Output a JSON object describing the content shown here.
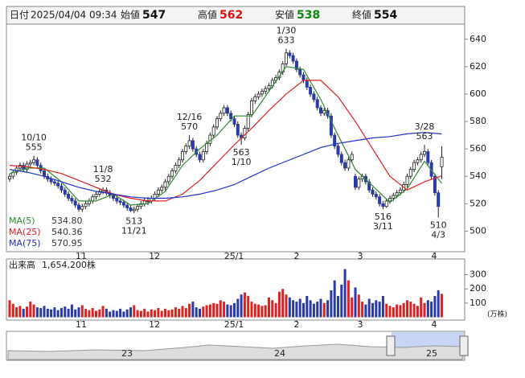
{
  "chart_data": {
    "type": "candlestick",
    "header": {
      "date_label": "日付",
      "datetime": "2025/04/04 09:34",
      "fields": [
        {
          "label": "始値",
          "value": 547,
          "color": "#111111"
        },
        {
          "label": "高値",
          "value": 562,
          "color": "#dd1111"
        },
        {
          "label": "安値",
          "value": 538,
          "color": "#118811"
        },
        {
          "label": "終値",
          "value": 554,
          "color": "#111111"
        }
      ]
    },
    "candles": [
      [
        538,
        542,
        536,
        540
      ],
      [
        540,
        545,
        538,
        543
      ],
      [
        543,
        548,
        541,
        546
      ],
      [
        546,
        550,
        544,
        548
      ],
      [
        548,
        550,
        543,
        545
      ],
      [
        545,
        551,
        543,
        549
      ],
      [
        549,
        552,
        547,
        550
      ],
      [
        550,
        555,
        548,
        552
      ],
      [
        552,
        554,
        546,
        548
      ],
      [
        548,
        550,
        542,
        544
      ],
      [
        544,
        546,
        538,
        540
      ],
      [
        540,
        542,
        536,
        538
      ],
      [
        538,
        540,
        534,
        536
      ],
      [
        536,
        538,
        533,
        535
      ],
      [
        535,
        537,
        531,
        533
      ],
      [
        533,
        535,
        528,
        530
      ],
      [
        530,
        532,
        525,
        527
      ],
      [
        527,
        529,
        522,
        524
      ],
      [
        524,
        526,
        520,
        522
      ],
      [
        522,
        524,
        517,
        519
      ],
      [
        519,
        521,
        514,
        516
      ],
      [
        516,
        520,
        514,
        518
      ],
      [
        518,
        522,
        516,
        520
      ],
      [
        520,
        524,
        518,
        522
      ],
      [
        522,
        527,
        520,
        525
      ],
      [
        525,
        529,
        523,
        527
      ],
      [
        527,
        531,
        525,
        529
      ],
      [
        529,
        532,
        527,
        530
      ],
      [
        530,
        532,
        526,
        528
      ],
      [
        528,
        530,
        524,
        526
      ],
      [
        526,
        528,
        522,
        524
      ],
      [
        524,
        526,
        520,
        522
      ],
      [
        522,
        524,
        519,
        521
      ],
      [
        521,
        523,
        517,
        519
      ],
      [
        519,
        521,
        515,
        517
      ],
      [
        517,
        519,
        514,
        515
      ],
      [
        515,
        518,
        513,
        516
      ],
      [
        516,
        520,
        514,
        518
      ],
      [
        518,
        522,
        516,
        520
      ],
      [
        520,
        524,
        518,
        522
      ],
      [
        522,
        525,
        519,
        522
      ],
      [
        522,
        526,
        520,
        524
      ],
      [
        524,
        529,
        522,
        527
      ],
      [
        527,
        532,
        525,
        530
      ],
      [
        530,
        534,
        528,
        532
      ],
      [
        532,
        538,
        530,
        536
      ],
      [
        536,
        542,
        534,
        540
      ],
      [
        540,
        546,
        538,
        544
      ],
      [
        544,
        550,
        542,
        548
      ],
      [
        548,
        554,
        546,
        552
      ],
      [
        552,
        560,
        550,
        558
      ],
      [
        558,
        564,
        556,
        562
      ],
      [
        562,
        570,
        560,
        566
      ],
      [
        566,
        568,
        558,
        560
      ],
      [
        560,
        562,
        554,
        556
      ],
      [
        556,
        558,
        550,
        552
      ],
      [
        552,
        560,
        550,
        558
      ],
      [
        558,
        566,
        556,
        564
      ],
      [
        564,
        572,
        562,
        570
      ],
      [
        570,
        578,
        568,
        576
      ],
      [
        576,
        584,
        574,
        582
      ],
      [
        582,
        588,
        580,
        586
      ],
      [
        586,
        592,
        584,
        590
      ],
      [
        590,
        592,
        584,
        586
      ],
      [
        586,
        588,
        580,
        582
      ],
      [
        582,
        584,
        576,
        578
      ],
      [
        578,
        580,
        568,
        570
      ],
      [
        570,
        572,
        563,
        568
      ],
      [
        568,
        577,
        566,
        575
      ],
      [
        575,
        587,
        573,
        585
      ],
      [
        585,
        597,
        583,
        595
      ],
      [
        595,
        600,
        593,
        598
      ],
      [
        598,
        602,
        596,
        600
      ],
      [
        600,
        604,
        598,
        602
      ],
      [
        602,
        606,
        600,
        604
      ],
      [
        604,
        608,
        602,
        606
      ],
      [
        606,
        612,
        604,
        610
      ],
      [
        610,
        614,
        608,
        612
      ],
      [
        612,
        618,
        610,
        616
      ],
      [
        616,
        624,
        614,
        622
      ],
      [
        622,
        633,
        620,
        630
      ],
      [
        630,
        632,
        626,
        628
      ],
      [
        628,
        630,
        622,
        624
      ],
      [
        624,
        626,
        616,
        618
      ],
      [
        618,
        620,
        612,
        614
      ],
      [
        614,
        616,
        608,
        610
      ],
      [
        610,
        612,
        603,
        605
      ],
      [
        605,
        607,
        598,
        600
      ],
      [
        600,
        602,
        594,
        596
      ],
      [
        596,
        598,
        588,
        590
      ],
      [
        590,
        592,
        584,
        586
      ],
      [
        586,
        590,
        584,
        588
      ],
      [
        588,
        590,
        582,
        584
      ],
      [
        584,
        586,
        568,
        570
      ],
      [
        570,
        572,
        560,
        562
      ],
      [
        562,
        564,
        554,
        556
      ],
      [
        556,
        558,
        548,
        550
      ],
      [
        550,
        552,
        544,
        546
      ],
      [
        546,
        554,
        544,
        552
      ],
      [
        552,
        558,
        550,
        556
      ],
      [
        540,
        542,
        530,
        532
      ],
      [
        532,
        540,
        530,
        538
      ],
      [
        538,
        542,
        536,
        540
      ],
      [
        540,
        542,
        534,
        536
      ],
      [
        536,
        538,
        528,
        530
      ],
      [
        530,
        532,
        525,
        527
      ],
      [
        527,
        529,
        523,
        525
      ],
      [
        525,
        527,
        518,
        520
      ],
      [
        520,
        522,
        516,
        518
      ],
      [
        518,
        524,
        517,
        522
      ],
      [
        522,
        526,
        520,
        524
      ],
      [
        524,
        528,
        522,
        526
      ],
      [
        526,
        530,
        524,
        528
      ],
      [
        528,
        532,
        526,
        530
      ],
      [
        530,
        536,
        528,
        534
      ],
      [
        534,
        542,
        532,
        540
      ],
      [
        540,
        547,
        538,
        545
      ],
      [
        545,
        552,
        543,
        550
      ],
      [
        550,
        554,
        548,
        552
      ],
      [
        552,
        558,
        550,
        556
      ],
      [
        556,
        563,
        554,
        558
      ],
      [
        558,
        560,
        548,
        550
      ],
      [
        550,
        552,
        538,
        540
      ],
      [
        540,
        542,
        526,
        528
      ],
      [
        528,
        530,
        510,
        518
      ],
      [
        547,
        562,
        538,
        554
      ]
    ],
    "up_color": "#ffffff",
    "down_color": "#2a3aa8",
    "wick_color": "#222222",
    "xticks": [
      {
        "value": 20.7,
        "label": "11"
      },
      {
        "value": 41.9,
        "label": "12"
      },
      {
        "value": 64.9,
        "label": "25/1"
      },
      {
        "value": 83,
        "label": "2"
      },
      {
        "value": 101.4,
        "label": "3"
      },
      {
        "value": 122.8,
        "label": "4"
      }
    ],
    "ylim": [
      485,
      651
    ],
    "yticks": [
      500,
      520,
      540,
      560,
      580,
      600,
      620,
      640
    ],
    "ma_lines": [
      {
        "name": "MA(5)",
        "color": "#2e8b2e",
        "current": 534.8,
        "current_label": "534.80",
        "x": [
          0,
          5,
          10,
          15,
          20,
          25,
          30,
          35,
          40,
          45,
          50,
          55,
          60,
          65,
          70,
          75,
          80,
          85,
          90,
          95,
          100,
          105,
          110,
          115,
          120,
          125
        ],
        "values": [
          542,
          546,
          546,
          536,
          522,
          522,
          527,
          519,
          520,
          529,
          548,
          560,
          570,
          584,
          584,
          602,
          620,
          618,
          596,
          570,
          545,
          533,
          521,
          531,
          551,
          534.8
        ]
      },
      {
        "name": "MA(25)",
        "color": "#e02020",
        "current": 540.36,
        "current_label": "540.36",
        "x": [
          0,
          5,
          10,
          15,
          20,
          25,
          30,
          35,
          40,
          45,
          50,
          55,
          60,
          65,
          70,
          75,
          80,
          85,
          90,
          95,
          100,
          105,
          110,
          115,
          120,
          125
        ],
        "values": [
          548,
          547,
          545,
          542,
          537,
          532,
          527,
          524,
          522,
          522,
          527,
          537,
          550,
          563,
          575,
          588,
          600,
          610,
          610,
          598,
          580,
          560,
          540,
          530,
          536,
          540.36
        ]
      },
      {
        "name": "MA(75)",
        "color": "#2030c8",
        "current": 570.95,
        "current_label": "570.95",
        "x": [
          0,
          5,
          10,
          15,
          20,
          25,
          30,
          35,
          40,
          45,
          50,
          55,
          60,
          65,
          70,
          75,
          80,
          85,
          90,
          95,
          100,
          105,
          110,
          115,
          120,
          125
        ],
        "values": [
          545,
          543,
          540,
          536,
          532,
          529,
          527,
          525,
          524,
          524,
          525,
          527,
          530,
          534,
          540,
          546,
          551,
          556,
          561,
          564,
          566,
          568,
          569,
          571,
          572,
          570.95
        ]
      }
    ],
    "annotations": [
      {
        "at": 7,
        "date": "10/10",
        "price": 555,
        "place": "above"
      },
      {
        "at": 27,
        "date": "11/8",
        "price": 532,
        "place": "above"
      },
      {
        "at": 36,
        "date": "11/21",
        "price": 513,
        "place": "below"
      },
      {
        "at": 52,
        "date": "12/16",
        "price": 570,
        "place": "above"
      },
      {
        "at": 67,
        "date": "1/10",
        "price": 563,
        "place": "below"
      },
      {
        "at": 80,
        "date": "1/30",
        "price": 633,
        "place": "above"
      },
      {
        "at": 108,
        "date": "3/11",
        "price": 516,
        "place": "below"
      },
      {
        "at": 120,
        "date": "3/28",
        "price": 563,
        "place": "above"
      },
      {
        "at": 124,
        "date": "4/3",
        "price": 510,
        "place": "below"
      }
    ],
    "volume": {
      "title": "出来高",
      "total_label": "1,654,200株",
      "unit": "(万株)",
      "values": [
        120,
        95,
        70,
        80,
        60,
        75,
        110,
        90,
        70,
        65,
        80,
        60,
        55,
        70,
        50,
        65,
        75,
        60,
        90,
        55,
        70,
        85,
        60,
        50,
        65,
        45,
        55,
        80,
        60,
        40,
        50,
        45,
        60,
        40,
        55,
        70,
        85,
        50,
        45,
        60,
        40,
        55,
        50,
        65,
        45,
        60,
        50,
        55,
        70,
        60,
        80,
        65,
        95,
        110,
        70,
        60,
        75,
        85,
        90,
        100,
        95,
        120,
        110,
        90,
        85,
        100,
        130,
        160,
        175,
        150,
        110,
        95,
        90,
        80,
        85,
        140,
        120,
        100,
        180,
        200,
        160,
        140,
        120,
        110,
        130,
        100,
        150,
        120,
        95,
        110,
        130,
        100,
        120,
        190,
        260,
        150,
        230,
        340,
        260,
        140,
        210,
        160,
        110,
        90,
        130,
        100,
        120,
        110,
        150,
        95,
        80,
        70,
        90,
        85,
        100,
        120,
        110,
        95,
        80,
        140,
        100,
        120,
        110,
        150,
        190,
        165
      ],
      "ylim": [
        -20,
        411
      ],
      "yticks": [
        100,
        200,
        300
      ],
      "up_color": "#dd2222",
      "down_color": "#2a3aa8"
    },
    "navigator": {
      "labels": [
        "23",
        "24",
        "25"
      ]
    }
  }
}
